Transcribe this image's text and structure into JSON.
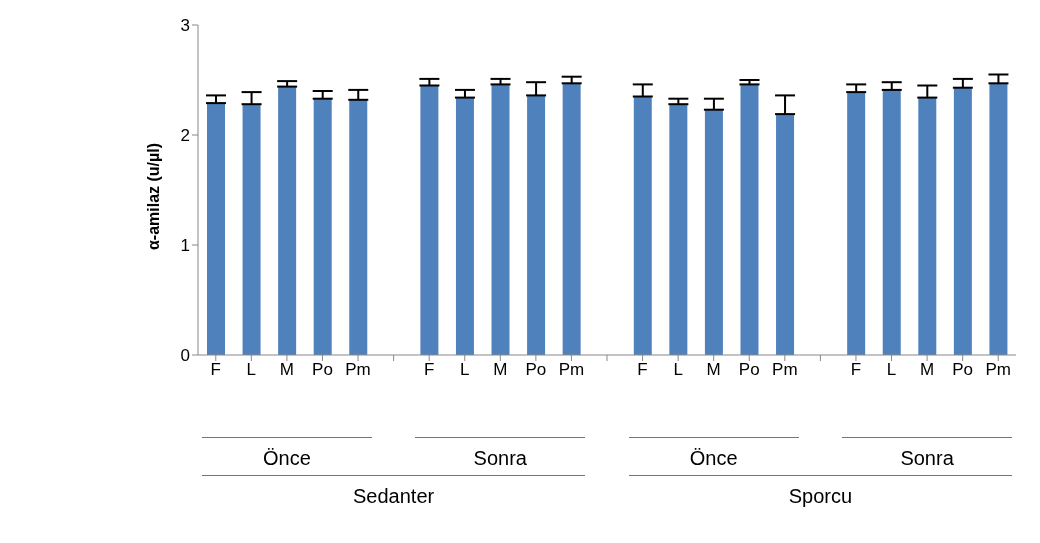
{
  "chart_data": {
    "type": "bar",
    "ylabel": "α-amilaz (u/µl)",
    "categories": [
      "F",
      "L",
      "M",
      "Po",
      "Pm",
      null,
      "F",
      "L",
      "M",
      "Po",
      "Pm",
      null,
      "F",
      "L",
      "M",
      "Po",
      "Pm",
      null,
      "F",
      "L",
      "M",
      "Po",
      "Pm"
    ],
    "values": [
      2.29,
      2.28,
      2.44,
      2.33,
      2.32,
      null,
      2.45,
      2.34,
      2.46,
      2.36,
      2.47,
      null,
      2.35,
      2.28,
      2.23,
      2.46,
      2.19,
      null,
      2.39,
      2.41,
      2.34,
      2.43,
      2.47
    ],
    "errors": [
      [
        2.29,
        2.36
      ],
      [
        2.28,
        2.39
      ],
      [
        2.44,
        2.49
      ],
      [
        2.33,
        2.4
      ],
      [
        2.32,
        2.41
      ],
      null,
      [
        2.45,
        2.51
      ],
      [
        2.34,
        2.41
      ],
      [
        2.46,
        2.51
      ],
      [
        2.36,
        2.48
      ],
      [
        2.47,
        2.53
      ],
      null,
      [
        2.35,
        2.46
      ],
      [
        2.28,
        2.33
      ],
      [
        2.23,
        2.33
      ],
      [
        2.46,
        2.5
      ],
      [
        2.19,
        2.36
      ],
      null,
      [
        2.39,
        2.46
      ],
      [
        2.41,
        2.48
      ],
      [
        2.34,
        2.45
      ],
      [
        2.43,
        2.51
      ],
      [
        2.47,
        2.55
      ]
    ],
    "color": "#4f81bd",
    "ylim": [
      0,
      3
    ],
    "yticks": [
      0,
      1,
      2,
      3
    ],
    "grid": false,
    "legend": false,
    "annotations": [
      "Önce",
      "Sonra",
      "Önce",
      "Sonra",
      "Sedanter",
      "Sporcu"
    ]
  }
}
